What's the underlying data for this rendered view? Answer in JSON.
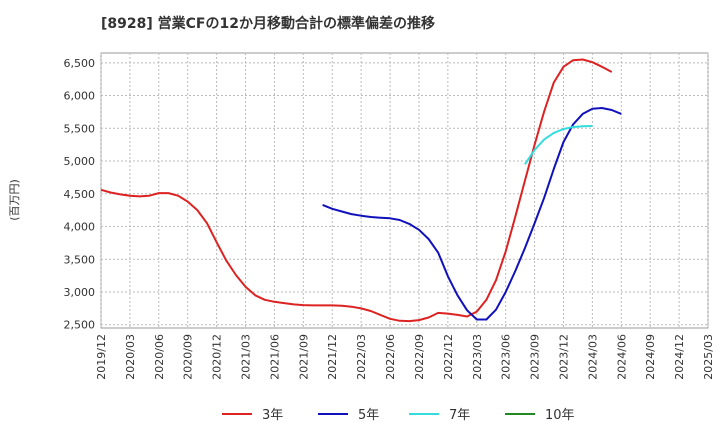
{
  "chart_data": {
    "type": "line",
    "title": "[8928]  営業CFの12か月移動合計の標準偏差の推移",
    "ylabel": "(百万円)",
    "xlabel": "",
    "ylim": [
      2450,
      6650
    ],
    "yticks": [
      2500,
      3000,
      3500,
      4000,
      4500,
      5000,
      5500,
      6000,
      6500
    ],
    "ytick_labels": [
      "2,500",
      "3,000",
      "3,500",
      "4,000",
      "4,500",
      "5,000",
      "5,500",
      "6,000",
      "6,500"
    ],
    "xtick_labels": [
      "2019/12",
      "2020/03",
      "2020/06",
      "2020/09",
      "2020/12",
      "2021/03",
      "2021/06",
      "2021/09",
      "2021/12",
      "2022/03",
      "2022/06",
      "2022/09",
      "2022/12",
      "2023/03",
      "2023/06",
      "2023/09",
      "2023/12",
      "2024/03",
      "2024/06",
      "2024/09",
      "2024/12",
      "2025/03"
    ],
    "grid": true,
    "legend_position": "bottom",
    "series": [
      {
        "name": "3年",
        "color": "#dd2222",
        "start_index": 0,
        "values": [
          4560,
          4520,
          4490,
          4470,
          4460,
          4470,
          4510,
          4510,
          4470,
          4380,
          4250,
          4050,
          3760,
          3480,
          3260,
          3080,
          2950,
          2880,
          2850,
          2830,
          2810,
          2800,
          2795,
          2795,
          2795,
          2790,
          2775,
          2750,
          2710,
          2650,
          2590,
          2560,
          2555,
          2570,
          2610,
          2680,
          2670,
          2650,
          2625,
          2700,
          2880,
          3180,
          3620,
          4150,
          4700,
          5250,
          5760,
          6200,
          6440,
          6540,
          6550,
          6510,
          6440,
          6360
        ]
      },
      {
        "name": "5年",
        "color": "#1111bb",
        "start_index": 23,
        "values": [
          4330,
          4270,
          4230,
          4190,
          4165,
          4145,
          4135,
          4125,
          4100,
          4040,
          3950,
          3810,
          3600,
          3240,
          2950,
          2720,
          2580,
          2580,
          2730,
          3000,
          3320,
          3670,
          4050,
          4440,
          4880,
          5290,
          5560,
          5720,
          5800,
          5810,
          5780,
          5720
        ]
      },
      {
        "name": "7年",
        "color": "#33dddd",
        "start_index": 44,
        "values": [
          4950,
          5170,
          5330,
          5430,
          5490,
          5520,
          5530,
          5535
        ]
      },
      {
        "name": "10年",
        "color": "#228822",
        "start_index": 0,
        "values": []
      }
    ]
  }
}
